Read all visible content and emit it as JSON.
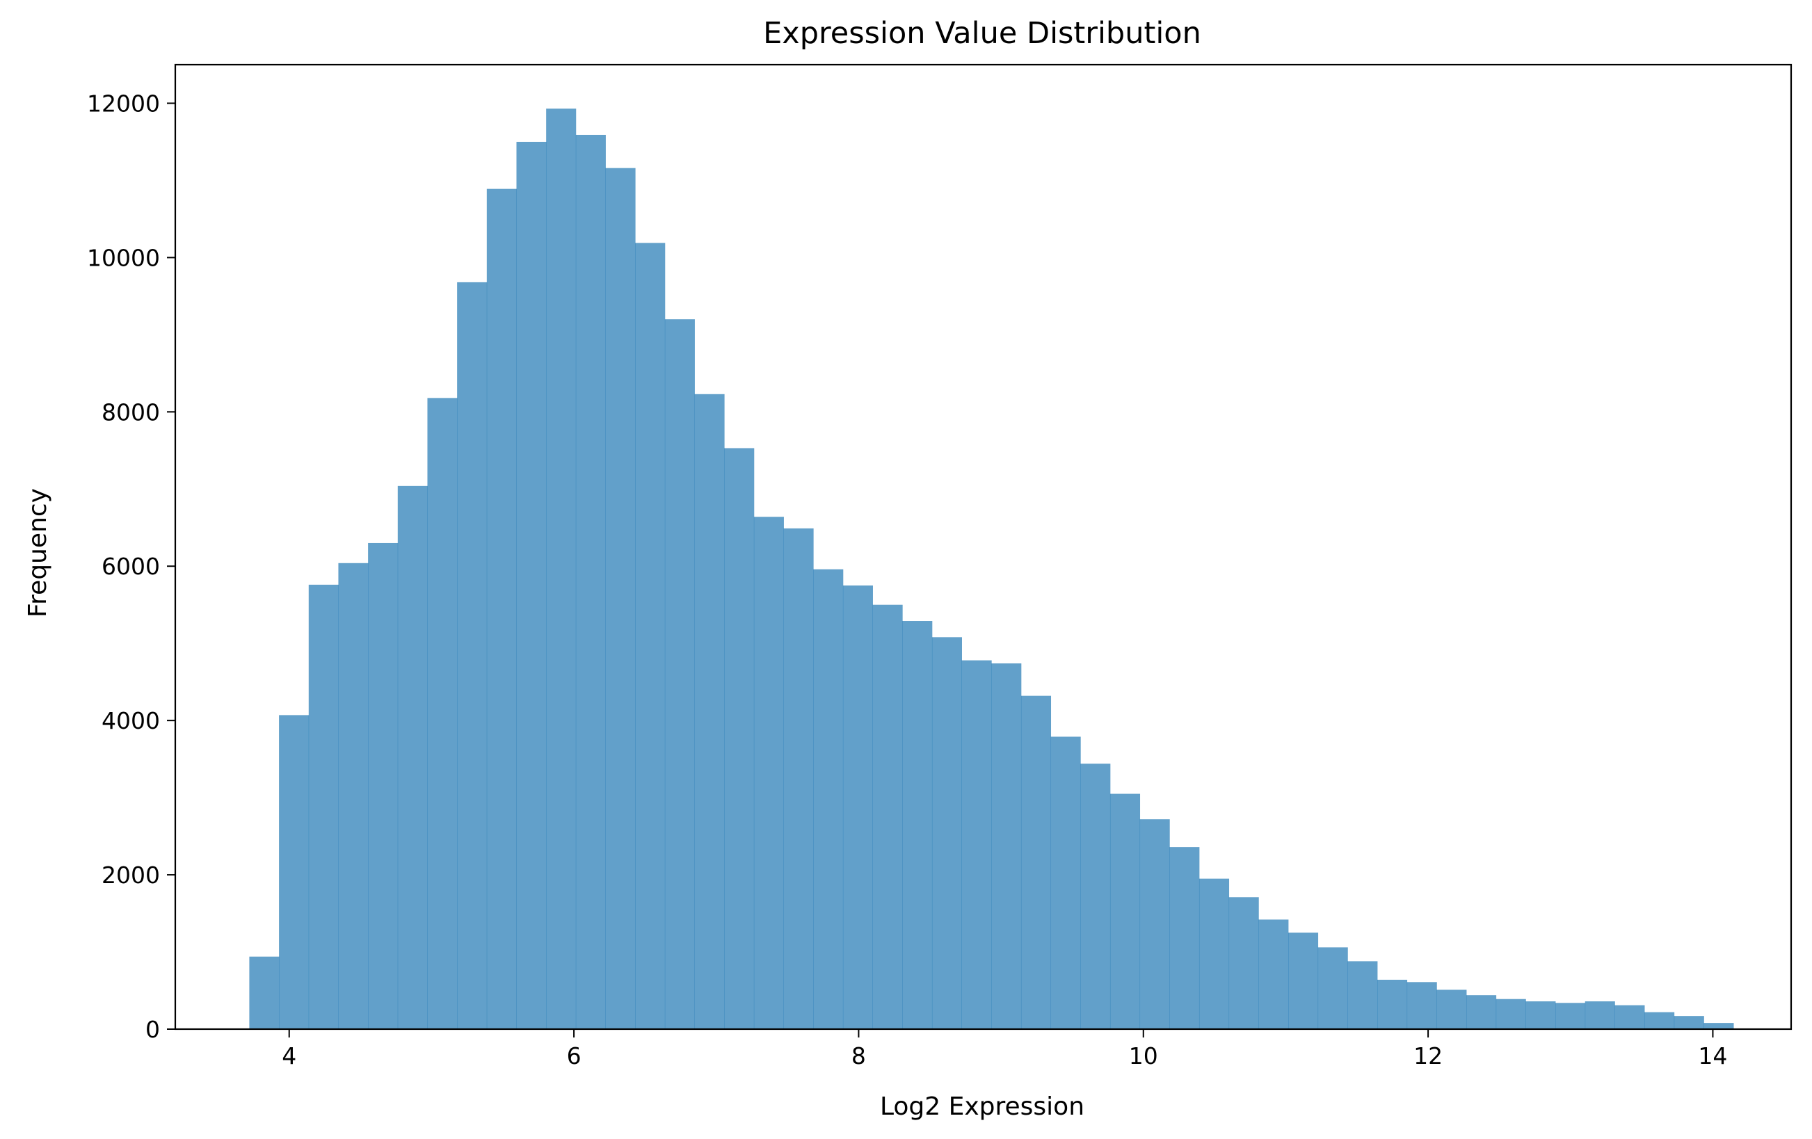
{
  "chart_data": {
    "type": "bar",
    "title": "Expression Value Distribution",
    "xlabel": "Log2 Expression",
    "ylabel": "Frequency",
    "bar_color": "#1f77b4",
    "bar_opacity": 0.7,
    "grid": false,
    "legend": false,
    "xlim": [
      3.2,
      14.55
    ],
    "ylim": [
      0,
      12500
    ],
    "bins": {
      "start": 3.72,
      "width": 0.2085,
      "values": [
        940,
        4070,
        5760,
        6040,
        6300,
        7040,
        8180,
        9680,
        10890,
        11500,
        11930,
        11590,
        11160,
        10190,
        9200,
        8230,
        7530,
        6640,
        6490,
        5960,
        5750,
        5500,
        5290,
        5080,
        4780,
        4740,
        4320,
        3790,
        3440,
        3050,
        2720,
        2360,
        1950,
        1710,
        1420,
        1250,
        1060,
        880,
        640,
        610,
        510,
        440,
        390,
        360,
        340,
        360,
        310,
        220,
        170,
        80
      ]
    },
    "x_ticks": [
      {
        "value": 4,
        "label": "4"
      },
      {
        "value": 6,
        "label": "6"
      },
      {
        "value": 8,
        "label": "8"
      },
      {
        "value": 10,
        "label": "10"
      },
      {
        "value": 12,
        "label": "12"
      },
      {
        "value": 14,
        "label": "14"
      }
    ],
    "y_ticks": [
      {
        "value": 0,
        "label": "0"
      },
      {
        "value": 2000,
        "label": "2000"
      },
      {
        "value": 4000,
        "label": "4000"
      },
      {
        "value": 6000,
        "label": "6000"
      },
      {
        "value": 8000,
        "label": "8000"
      },
      {
        "value": 10000,
        "label": "10000"
      },
      {
        "value": 12000,
        "label": "12000"
      }
    ]
  }
}
